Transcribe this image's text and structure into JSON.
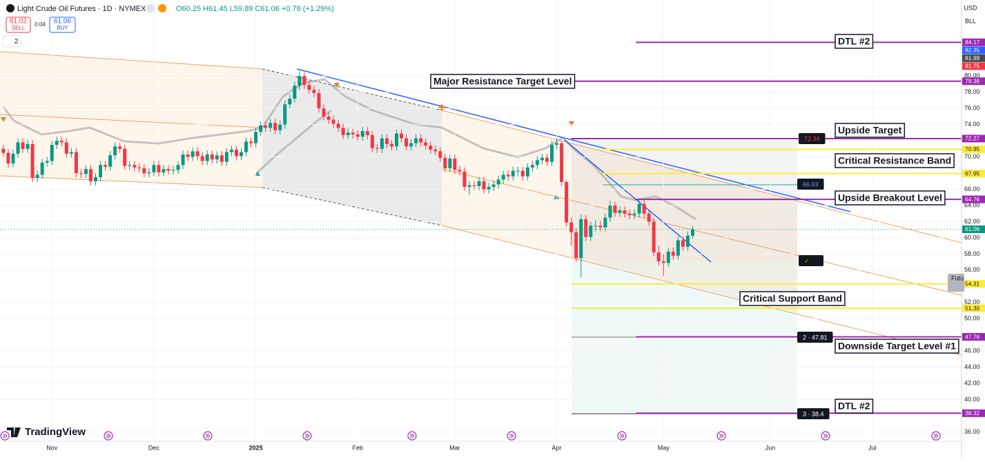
{
  "chart_data": {
    "type": "candlestick",
    "title": "Light Crude Oil Futures · 1D · NYMEX",
    "quote": "O60.25 H61.45 L59.89 C61.06 +0.78 (+1.29%)",
    "sell_price": "61.02",
    "sell_label": "SELL",
    "spread": "0.04",
    "buy_price": "61.06",
    "buy_label": "BUY",
    "indicator_count": "2",
    "currency": "USD",
    "unit": "BLL",
    "brand": "TradingView",
    "futures_tag": "Futu",
    "up_color": "#089981",
    "down_color": "#f23645",
    "grid": true,
    "xlim": [
      -0.7,
      197.4
    ],
    "ylim": [
      34.85,
      89.4
    ],
    "xticks": [
      {
        "value": 10,
        "label": "Nov"
      },
      {
        "value": 31,
        "label": "Dec"
      },
      {
        "value": 52,
        "label": "2025"
      },
      {
        "value": 73,
        "label": "Feb"
      },
      {
        "value": 93,
        "label": "Mar"
      },
      {
        "value": 114,
        "label": "Apr"
      },
      {
        "value": 136,
        "label": "May"
      },
      {
        "value": 158,
        "label": "Jun"
      },
      {
        "value": 179,
        "label": "Jul"
      }
    ],
    "yticks": [
      {
        "value": 80,
        "label": "80.00"
      },
      {
        "value": 78,
        "label": "78.00"
      },
      {
        "value": 76,
        "label": "76.00"
      },
      {
        "value": 74,
        "label": "74.00"
      },
      {
        "value": 70,
        "label": "70.00"
      },
      {
        "value": 66,
        "label": "66.00"
      },
      {
        "value": 64,
        "label": "64.00"
      },
      {
        "value": 62,
        "label": "62.00"
      },
      {
        "value": 60,
        "label": "60.00"
      },
      {
        "value": 58,
        "label": "58.00"
      },
      {
        "value": 56,
        "label": "56.00"
      },
      {
        "value": 52,
        "label": "52.00"
      },
      {
        "value": 50,
        "label": "50.00"
      },
      {
        "value": 46,
        "label": "46.00"
      },
      {
        "value": 44,
        "label": "44.00"
      },
      {
        "value": 42,
        "label": "42.00"
      },
      {
        "value": 40,
        "label": "40.00"
      },
      {
        "value": 36,
        "label": "36.00"
      }
    ],
    "ohlc": [
      [
        71.0,
        71.5,
        70.0,
        70.5
      ],
      [
        70.5,
        71.0,
        68.7,
        69.2
      ],
      [
        69.2,
        70.9,
        68.7,
        70.4
      ],
      [
        70.4,
        72.3,
        69.9,
        71.8
      ],
      [
        71.8,
        72.3,
        70.5,
        71.0
      ],
      [
        71.0,
        72.1,
        70.5,
        71.6
      ],
      [
        71.6,
        72.1,
        66.9,
        67.4
      ],
      [
        67.4,
        68.3,
        66.9,
        67.8
      ],
      [
        67.8,
        69.8,
        67.3,
        69.3
      ],
      [
        69.3,
        70.0,
        68.8,
        69.5
      ],
      [
        69.5,
        72.0,
        69.0,
        71.5
      ],
      [
        71.5,
        72.5,
        71.0,
        72.0
      ],
      [
        72.0,
        72.5,
        71.3,
        71.8
      ],
      [
        71.8,
        72.3,
        69.9,
        70.4
      ],
      [
        70.4,
        71.1,
        69.9,
        70.6
      ],
      [
        70.6,
        71.1,
        67.5,
        68.0
      ],
      [
        68.0,
        68.5,
        67.4,
        67.9
      ],
      [
        67.9,
        69.0,
        67.4,
        68.5
      ],
      [
        68.5,
        69.0,
        66.5,
        67.0
      ],
      [
        67.0,
        68.0,
        66.5,
        67.5
      ],
      [
        67.5,
        69.5,
        67.0,
        69.0
      ],
      [
        69.0,
        69.5,
        68.3,
        68.8
      ],
      [
        68.8,
        70.7,
        68.3,
        70.2
      ],
      [
        70.2,
        71.8,
        69.7,
        71.3
      ],
      [
        71.3,
        71.8,
        70.5,
        71.0
      ],
      [
        71.0,
        71.5,
        68.4,
        68.9
      ],
      [
        68.9,
        69.5,
        68.4,
        69.0
      ],
      [
        69.0,
        69.5,
        68.2,
        68.7
      ],
      [
        68.7,
        69.2,
        68.1,
        68.6
      ],
      [
        68.6,
        69.1,
        67.5,
        68.0
      ],
      [
        68.0,
        68.6,
        67.5,
        68.1
      ],
      [
        68.1,
        69.5,
        67.6,
        69.0
      ],
      [
        69.0,
        69.5,
        67.6,
        68.1
      ],
      [
        68.1,
        69.0,
        67.6,
        68.5
      ],
      [
        68.5,
        69.0,
        67.8,
        68.3
      ],
      [
        68.3,
        68.9,
        67.8,
        68.4
      ],
      [
        68.4,
        69.5,
        67.9,
        69.0
      ],
      [
        69.0,
        70.8,
        68.5,
        70.3
      ],
      [
        70.3,
        70.8,
        69.5,
        70.0
      ],
      [
        70.0,
        71.2,
        69.5,
        70.7
      ],
      [
        70.7,
        71.2,
        69.6,
        70.1
      ],
      [
        70.1,
        70.6,
        69.0,
        69.5
      ],
      [
        69.5,
        70.8,
        69.0,
        70.3
      ],
      [
        70.3,
        70.8,
        69.2,
        69.7
      ],
      [
        69.7,
        70.7,
        69.2,
        70.2
      ],
      [
        70.2,
        70.7,
        68.9,
        69.4
      ],
      [
        69.4,
        71.1,
        68.9,
        70.6
      ],
      [
        70.6,
        71.4,
        70.1,
        70.9
      ],
      [
        70.9,
        71.4,
        69.6,
        70.1
      ],
      [
        70.1,
        71.1,
        69.6,
        70.6
      ],
      [
        70.6,
        72.4,
        70.1,
        71.9
      ],
      [
        71.9,
        72.4,
        71.2,
        71.7
      ],
      [
        71.7,
        73.6,
        71.2,
        73.1
      ],
      [
        73.1,
        74.4,
        72.6,
        73.9
      ],
      [
        73.9,
        74.4,
        73.1,
        73.6
      ],
      [
        73.6,
        74.7,
        73.1,
        74.2
      ],
      [
        74.2,
        74.7,
        72.8,
        73.3
      ],
      [
        73.3,
        74.5,
        72.8,
        74.0
      ],
      [
        74.0,
        77.0,
        73.5,
        76.5
      ],
      [
        76.5,
        77.7,
        76.0,
        77.2
      ],
      [
        77.2,
        79.3,
        76.7,
        78.8
      ],
      [
        78.8,
        80.6,
        78.3,
        80.0
      ],
      [
        80.0,
        80.5,
        78.4,
        78.9
      ],
      [
        78.9,
        79.4,
        77.8,
        78.3
      ],
      [
        78.3,
        78.8,
        77.4,
        77.9
      ],
      [
        77.9,
        78.4,
        75.5,
        76.0
      ],
      [
        76.0,
        76.5,
        74.5,
        75.0
      ],
      [
        75.0,
        75.5,
        74.1,
        74.6
      ],
      [
        74.6,
        75.1,
        73.6,
        74.1
      ],
      [
        74.1,
        74.6,
        73.1,
        73.6
      ],
      [
        73.6,
        74.1,
        72.2,
        72.7
      ],
      [
        72.7,
        73.5,
        72.2,
        73.0
      ],
      [
        73.0,
        73.5,
        72.3,
        72.8
      ],
      [
        72.8,
        73.3,
        72.0,
        72.5
      ],
      [
        72.5,
        73.7,
        72.0,
        73.2
      ],
      [
        73.2,
        73.7,
        72.2,
        72.7
      ],
      [
        72.7,
        73.2,
        70.6,
        71.1
      ],
      [
        71.1,
        71.6,
        70.5,
        71.0
      ],
      [
        71.0,
        72.8,
        70.5,
        72.3
      ],
      [
        72.3,
        72.8,
        71.1,
        71.6
      ],
      [
        71.6,
        72.1,
        70.8,
        71.3
      ],
      [
        71.3,
        73.4,
        70.8,
        72.9
      ],
      [
        72.9,
        73.4,
        71.8,
        72.3
      ],
      [
        72.3,
        72.8,
        70.8,
        71.3
      ],
      [
        71.3,
        72.2,
        70.8,
        71.7
      ],
      [
        71.7,
        72.8,
        71.2,
        72.3
      ],
      [
        72.3,
        72.8,
        71.3,
        71.8
      ],
      [
        71.8,
        72.3,
        70.9,
        71.4
      ],
      [
        71.4,
        71.9,
        70.4,
        70.9
      ],
      [
        70.9,
        71.4,
        70.2,
        70.7
      ],
      [
        70.7,
        71.2,
        69.4,
        69.9
      ],
      [
        69.9,
        70.4,
        68.1,
        68.6
      ],
      [
        68.6,
        70.3,
        68.1,
        69.8
      ],
      [
        69.8,
        70.3,
        67.9,
        68.4
      ],
      [
        68.4,
        68.9,
        67.7,
        68.2
      ],
      [
        68.2,
        68.7,
        65.8,
        66.3
      ],
      [
        66.3,
        67.0,
        65.3,
        66.5
      ],
      [
        66.5,
        67.0,
        65.9,
        66.4
      ],
      [
        66.4,
        67.5,
        65.9,
        67.0
      ],
      [
        67.0,
        67.5,
        65.5,
        66.0
      ],
      [
        66.0,
        66.8,
        65.5,
        66.3
      ],
      [
        66.3,
        67.1,
        65.8,
        66.6
      ],
      [
        66.6,
        67.7,
        66.1,
        67.2
      ],
      [
        67.2,
        68.3,
        66.7,
        67.8
      ],
      [
        67.8,
        68.3,
        67.1,
        67.6
      ],
      [
        67.6,
        68.8,
        67.1,
        68.3
      ],
      [
        68.3,
        68.8,
        67.6,
        68.3
      ],
      [
        68.3,
        68.8,
        67.1,
        67.6
      ],
      [
        67.6,
        69.2,
        67.1,
        68.7
      ],
      [
        68.7,
        69.5,
        68.2,
        69.0
      ],
      [
        69.0,
        70.1,
        68.5,
        69.6
      ],
      [
        69.6,
        70.4,
        69.1,
        69.9
      ],
      [
        69.9,
        70.4,
        68.9,
        69.4
      ],
      [
        69.4,
        72.0,
        68.9,
        71.5
      ],
      [
        71.5,
        72.3,
        71.0,
        71.7
      ],
      [
        71.7,
        72.0,
        66.4,
        66.9
      ],
      [
        66.9,
        67.1,
        61.4,
        61.9
      ],
      [
        61.9,
        62.6,
        59.0,
        60.7
      ],
      [
        60.7,
        61.2,
        57.0,
        57.5
      ],
      [
        57.5,
        62.9,
        55.1,
        62.3
      ],
      [
        62.3,
        62.8,
        59.6,
        60.1
      ],
      [
        60.1,
        62.0,
        59.6,
        61.5
      ],
      [
        61.5,
        62.2,
        60.8,
        61.5
      ],
      [
        61.5,
        62.1,
        60.8,
        61.3
      ],
      [
        61.3,
        63.0,
        60.8,
        62.5
      ],
      [
        62.5,
        64.6,
        62.0,
        64.0
      ],
      [
        64.0,
        64.5,
        62.6,
        63.1
      ],
      [
        63.1,
        63.9,
        62.6,
        63.4
      ],
      [
        63.4,
        63.9,
        62.5,
        63.0
      ],
      [
        63.0,
        63.5,
        62.3,
        62.8
      ],
      [
        62.8,
        63.5,
        62.3,
        63.0
      ],
      [
        63.0,
        64.7,
        62.5,
        64.2
      ],
      [
        64.2,
        64.7,
        62.5,
        63.0
      ],
      [
        63.0,
        63.5,
        61.5,
        62.0
      ],
      [
        62.0,
        62.5,
        57.7,
        58.2
      ],
      [
        58.2,
        59.0,
        56.6,
        57.1
      ],
      [
        57.1,
        58.0,
        55.3,
        56.9
      ],
      [
        56.9,
        58.8,
        56.4,
        58.3
      ],
      [
        58.3,
        58.8,
        57.3,
        57.8
      ],
      [
        57.8,
        60.2,
        57.3,
        59.7
      ],
      [
        59.7,
        60.2,
        58.4,
        58.9
      ],
      [
        58.9,
        60.8,
        58.4,
        60.28
      ],
      [
        60.25,
        61.45,
        59.89,
        61.06
      ]
    ],
    "levels": [
      {
        "price": 84.17,
        "label": "84.17",
        "color": "#9c27b0",
        "from": 130.3
      },
      {
        "price": 79.36,
        "label": "79.36",
        "color": "#9c27b0",
        "from": 117
      },
      {
        "price": 72.27,
        "label": "72.27",
        "color": "#9c27b0",
        "from": 117
      },
      {
        "price": 70.95,
        "label": "70.95",
        "color": "#ffeb3b",
        "from": 123.5
      },
      {
        "price": 67.95,
        "label": "67.95",
        "color": "#ffeb3b",
        "from": 123.5
      },
      {
        "price": 64.76,
        "label": "64.76",
        "color": "#9c27b0",
        "from": 130.3
      },
      {
        "price": 54.31,
        "label": "54.31",
        "color": "#ffeb3b",
        "from": 117
      },
      {
        "price": 51.3,
        "label": "51.30",
        "color": "#ffeb3b",
        "from": 117
      },
      {
        "price": 47.76,
        "label": "47.76",
        "color": "#9c27b0",
        "from": 130.3
      },
      {
        "price": 38.32,
        "label": "38.32",
        "color": "#9c27b0",
        "from": 130.3
      }
    ],
    "axis_tags": [
      {
        "label": "82.35",
        "color": "#2962ff"
      },
      {
        "label": "81.99",
        "color": "#4a4a4a"
      },
      {
        "label": "81.75",
        "color": "#f23645"
      }
    ],
    "last_price": {
      "price": 61.06,
      "label": "61.06"
    },
    "annotations": [
      "DTL #2",
      "Major Resistance Target Level",
      "Upside Target",
      "Critical Resistance Band",
      "Upside Breakout Level",
      "Critical Support Band",
      "Downside Target Level #1",
      "DTL #2"
    ],
    "callouts": [
      "72.34",
      "66.63",
      "✓",
      "2 · 47.81",
      "3 · 38.4"
    ]
  }
}
